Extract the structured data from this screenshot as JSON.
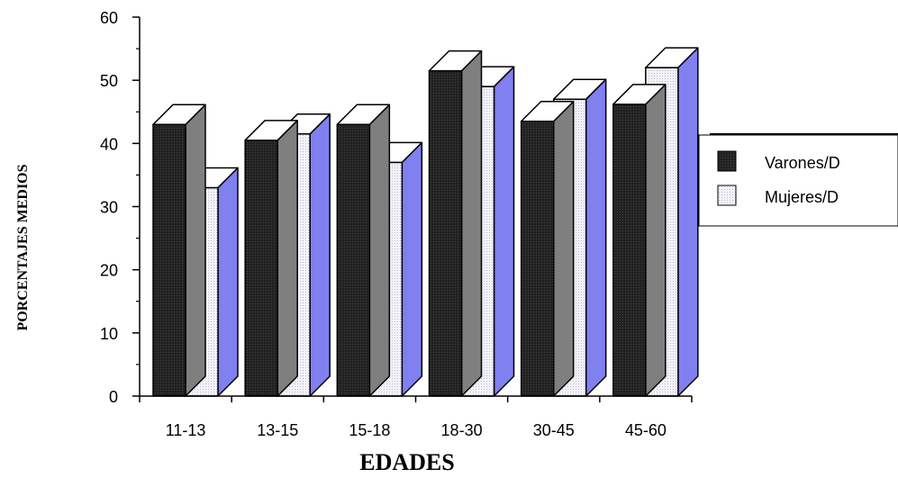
{
  "chart_data": {
    "type": "bar",
    "categories": [
      "11-13",
      "13-15",
      "15-18",
      "18-30",
      "30-45",
      "45-60"
    ],
    "series": [
      {
        "name": "Varones/D",
        "values": [
          43,
          40.5,
          43,
          51.5,
          43.5,
          46.2
        ]
      },
      {
        "name": "Mujeres/D",
        "values": [
          33,
          41.5,
          37,
          49,
          47,
          52
        ]
      }
    ],
    "title": "",
    "xlabel": "EDADES",
    "ylabel": "PORCENTAJES MEDIOS",
    "ylim": [
      0,
      60
    ],
    "yticks": [
      "0",
      "10",
      "20",
      "30",
      "40",
      "50",
      "60"
    ],
    "legend_position": "right",
    "grid": false,
    "style": "3d-bar",
    "colors": {
      "Varones/D": {
        "front": "#1c1c1c",
        "side": "#7f7f7f",
        "top": "#ffffff"
      },
      "Mujeres/D": {
        "front": "#ececf8",
        "side": "#8080f0",
        "top": "#ffffff"
      }
    }
  }
}
